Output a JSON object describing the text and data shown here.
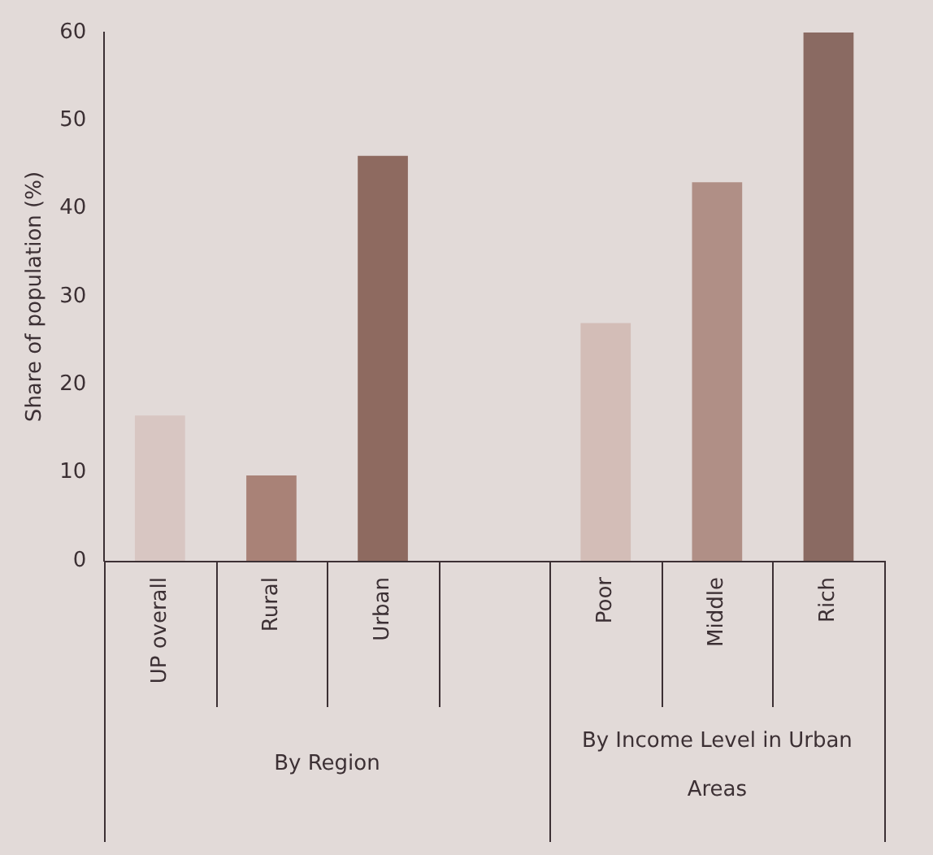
{
  "chart_data": {
    "type": "bar",
    "ylabel": "Share of population (%)",
    "categories": [
      "UP overall",
      "Rural",
      "Urban",
      null,
      "Poor",
      "Middle",
      "Rich"
    ],
    "values": [
      16.5,
      9.7,
      46,
      null,
      27,
      43,
      60
    ],
    "colors": [
      "#d8c6c2",
      "#a98277",
      "#8e6a60",
      "#8e6a60",
      "#d3bdb7",
      "#b08f86",
      "#8a6a62"
    ],
    "ylim": [
      0,
      60
    ],
    "yticks": [
      0,
      10,
      20,
      30,
      40,
      50,
      60
    ],
    "grid": false,
    "legend": false,
    "annotations": [
      "By Region",
      "By Income Level in Urban Areas"
    ]
  }
}
